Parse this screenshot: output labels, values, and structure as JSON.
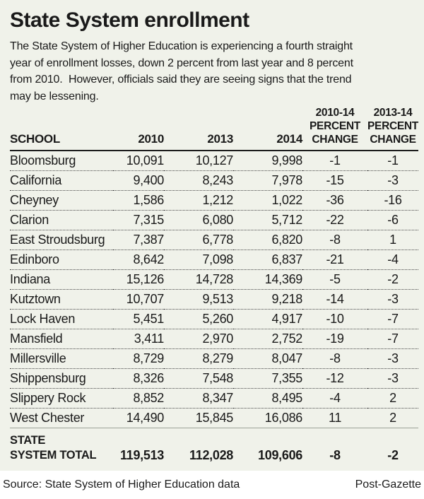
{
  "title": "State System enrollment",
  "intro_lines": [
    "The State System of Higher Education is experiencing a fourth straight",
    "year of enrollment losses, down 2 percent from last year and 8 percent",
    "from 2010.  However, officials said they are seeing signs that the trend",
    "may be lessening."
  ],
  "table": {
    "headers": {
      "school": "SCHOOL",
      "y2010": "2010",
      "y2013": "2013",
      "y2014": "2014",
      "pct_2010_14": {
        "line1": "2010-14",
        "line2": "PERCENT",
        "line3": "CHANGE"
      },
      "pct_2013_14": {
        "line1": "2013-14",
        "line2": "PERCENT",
        "line3": "CHANGE"
      }
    },
    "rows": [
      {
        "school": "Bloomsburg",
        "y2010": "10,091",
        "y2013": "10,127",
        "y2014": "9,998",
        "pct_2010_14": "-1",
        "pct_2013_14": "-1"
      },
      {
        "school": "California",
        "y2010": "9,400",
        "y2013": "8,243",
        "y2014": "7,978",
        "pct_2010_14": "-15",
        "pct_2013_14": "-3"
      },
      {
        "school": "Cheyney",
        "y2010": "1,586",
        "y2013": "1,212",
        "y2014": "1,022",
        "pct_2010_14": "-36",
        "pct_2013_14": "-16"
      },
      {
        "school": "Clarion",
        "y2010": "7,315",
        "y2013": "6,080",
        "y2014": "5,712",
        "pct_2010_14": "-22",
        "pct_2013_14": "-6"
      },
      {
        "school": "East Stroudsburg",
        "y2010": "7,387",
        "y2013": "6,778",
        "y2014": "6,820",
        "pct_2010_14": "-8",
        "pct_2013_14": "1"
      },
      {
        "school": "Edinboro",
        "y2010": "8,642",
        "y2013": "7,098",
        "y2014": "6,837",
        "pct_2010_14": "-21",
        "pct_2013_14": "-4"
      },
      {
        "school": "Indiana",
        "y2010": "15,126",
        "y2013": "14,728",
        "y2014": "14,369",
        "pct_2010_14": "-5",
        "pct_2013_14": "-2"
      },
      {
        "school": "Kutztown",
        "y2010": "10,707",
        "y2013": "9,513",
        "y2014": "9,218",
        "pct_2010_14": "-14",
        "pct_2013_14": "-3"
      },
      {
        "school": "Lock Haven",
        "y2010": "5,451",
        "y2013": "5,260",
        "y2014": "4,917",
        "pct_2010_14": "-10",
        "pct_2013_14": "-7"
      },
      {
        "school": "Mansfield",
        "y2010": "3,411",
        "y2013": "2,970",
        "y2014": "2,752",
        "pct_2010_14": "-19",
        "pct_2013_14": "-7"
      },
      {
        "school": "Millersville",
        "y2010": "8,729",
        "y2013": "8,279",
        "y2014": "8,047",
        "pct_2010_14": "-8",
        "pct_2013_14": "-3"
      },
      {
        "school": "Shippensburg",
        "y2010": "8,326",
        "y2013": "7,548",
        "y2014": "7,355",
        "pct_2010_14": "-12",
        "pct_2013_14": "-3"
      },
      {
        "school": "Slippery Rock",
        "y2010": "8,852",
        "y2013": "8,347",
        "y2014": "8,495",
        "pct_2010_14": "-4",
        "pct_2013_14": "2"
      },
      {
        "school": "West Chester",
        "y2010": "14,490",
        "y2013": "15,845",
        "y2014": "16,086",
        "pct_2010_14": "11",
        "pct_2013_14": "2"
      }
    ],
    "total": {
      "label_line1": "STATE",
      "label_line2": "SYSTEM TOTAL",
      "y2010": "119,513",
      "y2013": "112,028",
      "y2014": "109,606",
      "pct_2010_14": "-8",
      "pct_2013_14": "-2"
    }
  },
  "footer": {
    "source": "Source: State System of Higher Education data",
    "credit": "Post-Gazette"
  },
  "colors": {
    "panel_bg": "#f0f2ea",
    "text": "#1a1a1a",
    "header_rule": "#1c1c1c",
    "total_rule": "#9aa096",
    "row_dotted_rule": "#4a4a4a",
    "footer_bg": "#ffffff"
  },
  "chart_data": {
    "type": "table",
    "title": "State System enrollment",
    "columns": [
      "SCHOOL",
      "2010",
      "2013",
      "2014",
      "2010-14 PERCENT CHANGE",
      "2013-14 PERCENT CHANGE"
    ],
    "rows": [
      [
        "Bloomsburg",
        10091,
        10127,
        9998,
        -1,
        -1
      ],
      [
        "California",
        9400,
        8243,
        7978,
        -15,
        -3
      ],
      [
        "Cheyney",
        1586,
        1212,
        1022,
        -36,
        -16
      ],
      [
        "Clarion",
        7315,
        6080,
        5712,
        -22,
        -6
      ],
      [
        "East Stroudsburg",
        7387,
        6778,
        6820,
        -8,
        1
      ],
      [
        "Edinboro",
        8642,
        7098,
        6837,
        -21,
        -4
      ],
      [
        "Indiana",
        15126,
        14728,
        14369,
        -5,
        -2
      ],
      [
        "Kutztown",
        10707,
        9513,
        9218,
        -14,
        -3
      ],
      [
        "Lock Haven",
        5451,
        5260,
        4917,
        -10,
        -7
      ],
      [
        "Mansfield",
        3411,
        2970,
        2752,
        -19,
        -7
      ],
      [
        "Millersville",
        8729,
        8279,
        8047,
        -8,
        -3
      ],
      [
        "Shippensburg",
        8326,
        7548,
        7355,
        -12,
        -3
      ],
      [
        "Slippery Rock",
        8852,
        8347,
        8495,
        -4,
        2
      ],
      [
        "West Chester",
        14490,
        15845,
        16086,
        11,
        2
      ]
    ],
    "total_row": [
      "STATE SYSTEM TOTAL",
      119513,
      112028,
      109606,
      -8,
      -2
    ]
  }
}
